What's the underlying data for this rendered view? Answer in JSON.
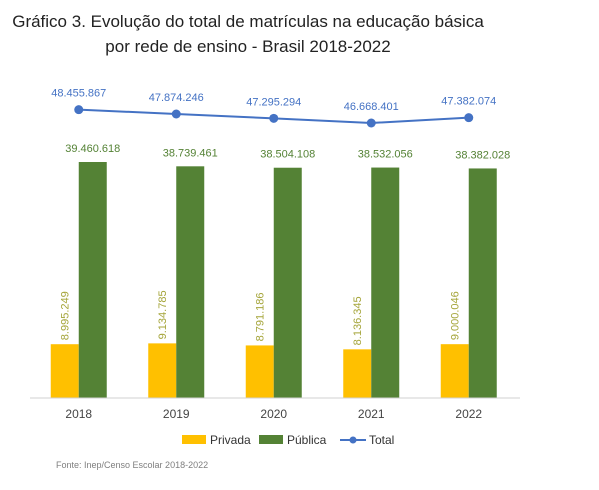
{
  "chart_data": {
    "type": "bar",
    "title_line1": "Gráfico 3. Evolução do total de matrículas na educação básica",
    "title_line2": "por rede de ensino - Brasil 2018-2022",
    "categories": [
      "2018",
      "2019",
      "2020",
      "2021",
      "2022"
    ],
    "series": [
      {
        "name": "Privada",
        "type": "bar",
        "color": "#FFC000",
        "values": [
          8995249,
          9134785,
          8791186,
          8136345,
          9000046
        ],
        "labels": [
          "8.995.249",
          "9.134.785",
          "8.791.186",
          "8.136.345",
          "9.000.046"
        ]
      },
      {
        "name": "Pública",
        "type": "bar",
        "color": "#548235",
        "values": [
          39460618,
          38739461,
          38504108,
          38532056,
          38382028
        ],
        "labels": [
          "39.460.618",
          "38.739.461",
          "38.504.108",
          "38.532.056",
          "38.382.028"
        ]
      },
      {
        "name": "Total",
        "type": "line",
        "color": "#4472C4",
        "values": [
          48455867,
          47874246,
          47295294,
          46668401,
          47382074
        ],
        "labels": [
          "48.455.867",
          "47.874.246",
          "47.295.294",
          "46.668.401",
          "47.382.074"
        ]
      }
    ],
    "bar_label_colors": {
      "Privada": "#A5A53A",
      "Pública": "#548235",
      "Total": "#4472C4"
    },
    "legend_position": "bottom",
    "grid": false,
    "source": "Fonte: Inep/Censo Escolar 2018-2022"
  }
}
